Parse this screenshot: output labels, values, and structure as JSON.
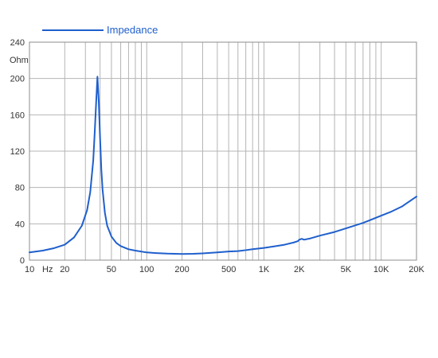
{
  "chart_data": {
    "type": "line",
    "x_scale": "log",
    "x_range": [
      10,
      20000
    ],
    "y_range": [
      0,
      240
    ],
    "ylabel": "Ohm",
    "x_unit_label": "Hz",
    "grid": true,
    "legend_placement": "top-left",
    "x_ticks": [
      {
        "value": 10,
        "label": "10"
      },
      {
        "value": 20,
        "label": "20"
      },
      {
        "value": 50,
        "label": "50"
      },
      {
        "value": 100,
        "label": "100"
      },
      {
        "value": 200,
        "label": "200"
      },
      {
        "value": 500,
        "label": "500"
      },
      {
        "value": 1000,
        "label": "1K"
      },
      {
        "value": 2000,
        "label": "2K"
      },
      {
        "value": 5000,
        "label": "5K"
      },
      {
        "value": 10000,
        "label": "10K"
      },
      {
        "value": 20000,
        "label": "20K"
      }
    ],
    "y_ticks": [
      0,
      40,
      80,
      120,
      160,
      200,
      240
    ],
    "series": [
      {
        "name": "Impedance",
        "color": "#1f5fcc",
        "x": [
          10,
          13,
          16,
          20,
          24,
          28,
          31,
          33,
          35,
          36,
          37,
          38,
          39,
          40,
          41,
          42,
          44,
          46,
          50,
          55,
          60,
          70,
          80,
          100,
          120,
          150,
          200,
          250,
          300,
          400,
          500,
          600,
          700,
          800,
          1000,
          1200,
          1500,
          1800,
          1950,
          2000,
          2100,
          2200,
          2500,
          3000,
          4000,
          5000,
          7000,
          8000,
          10000,
          12000,
          15000,
          20000
        ],
        "y": [
          8.5,
          10.5,
          13,
          17,
          25,
          38,
          55,
          75,
          110,
          140,
          172,
          202,
          175,
          135,
          100,
          78,
          52,
          38,
          26,
          19,
          15.5,
          12,
          10.5,
          8.5,
          7.8,
          7.2,
          6.8,
          7,
          7.5,
          8.5,
          9.5,
          10,
          11,
          12,
          13.5,
          15,
          17,
          19.5,
          21,
          22.5,
          23.5,
          22.5,
          24,
          27,
          31,
          35,
          41,
          44,
          49,
          53,
          59,
          70
        ]
      }
    ]
  }
}
